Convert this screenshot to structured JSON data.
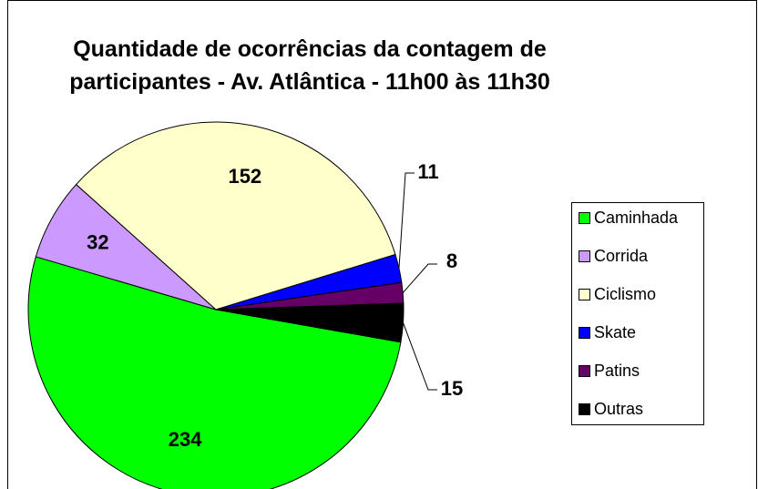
{
  "chart_data": {
    "type": "pie",
    "title": "Quantidade de ocorrências da contagem de participantes - Av. Atlântica - 11h00 às 11h30",
    "categories": [
      "Caminhada",
      "Corrida",
      "Ciclismo",
      "Skate",
      "Patins",
      "Outras"
    ],
    "values": [
      234,
      32,
      152,
      11,
      8,
      15
    ],
    "colors": [
      "#00ff00",
      "#cc99ff",
      "#ffffcc",
      "#0000ff",
      "#660066",
      "#000000"
    ],
    "legend": "right"
  }
}
